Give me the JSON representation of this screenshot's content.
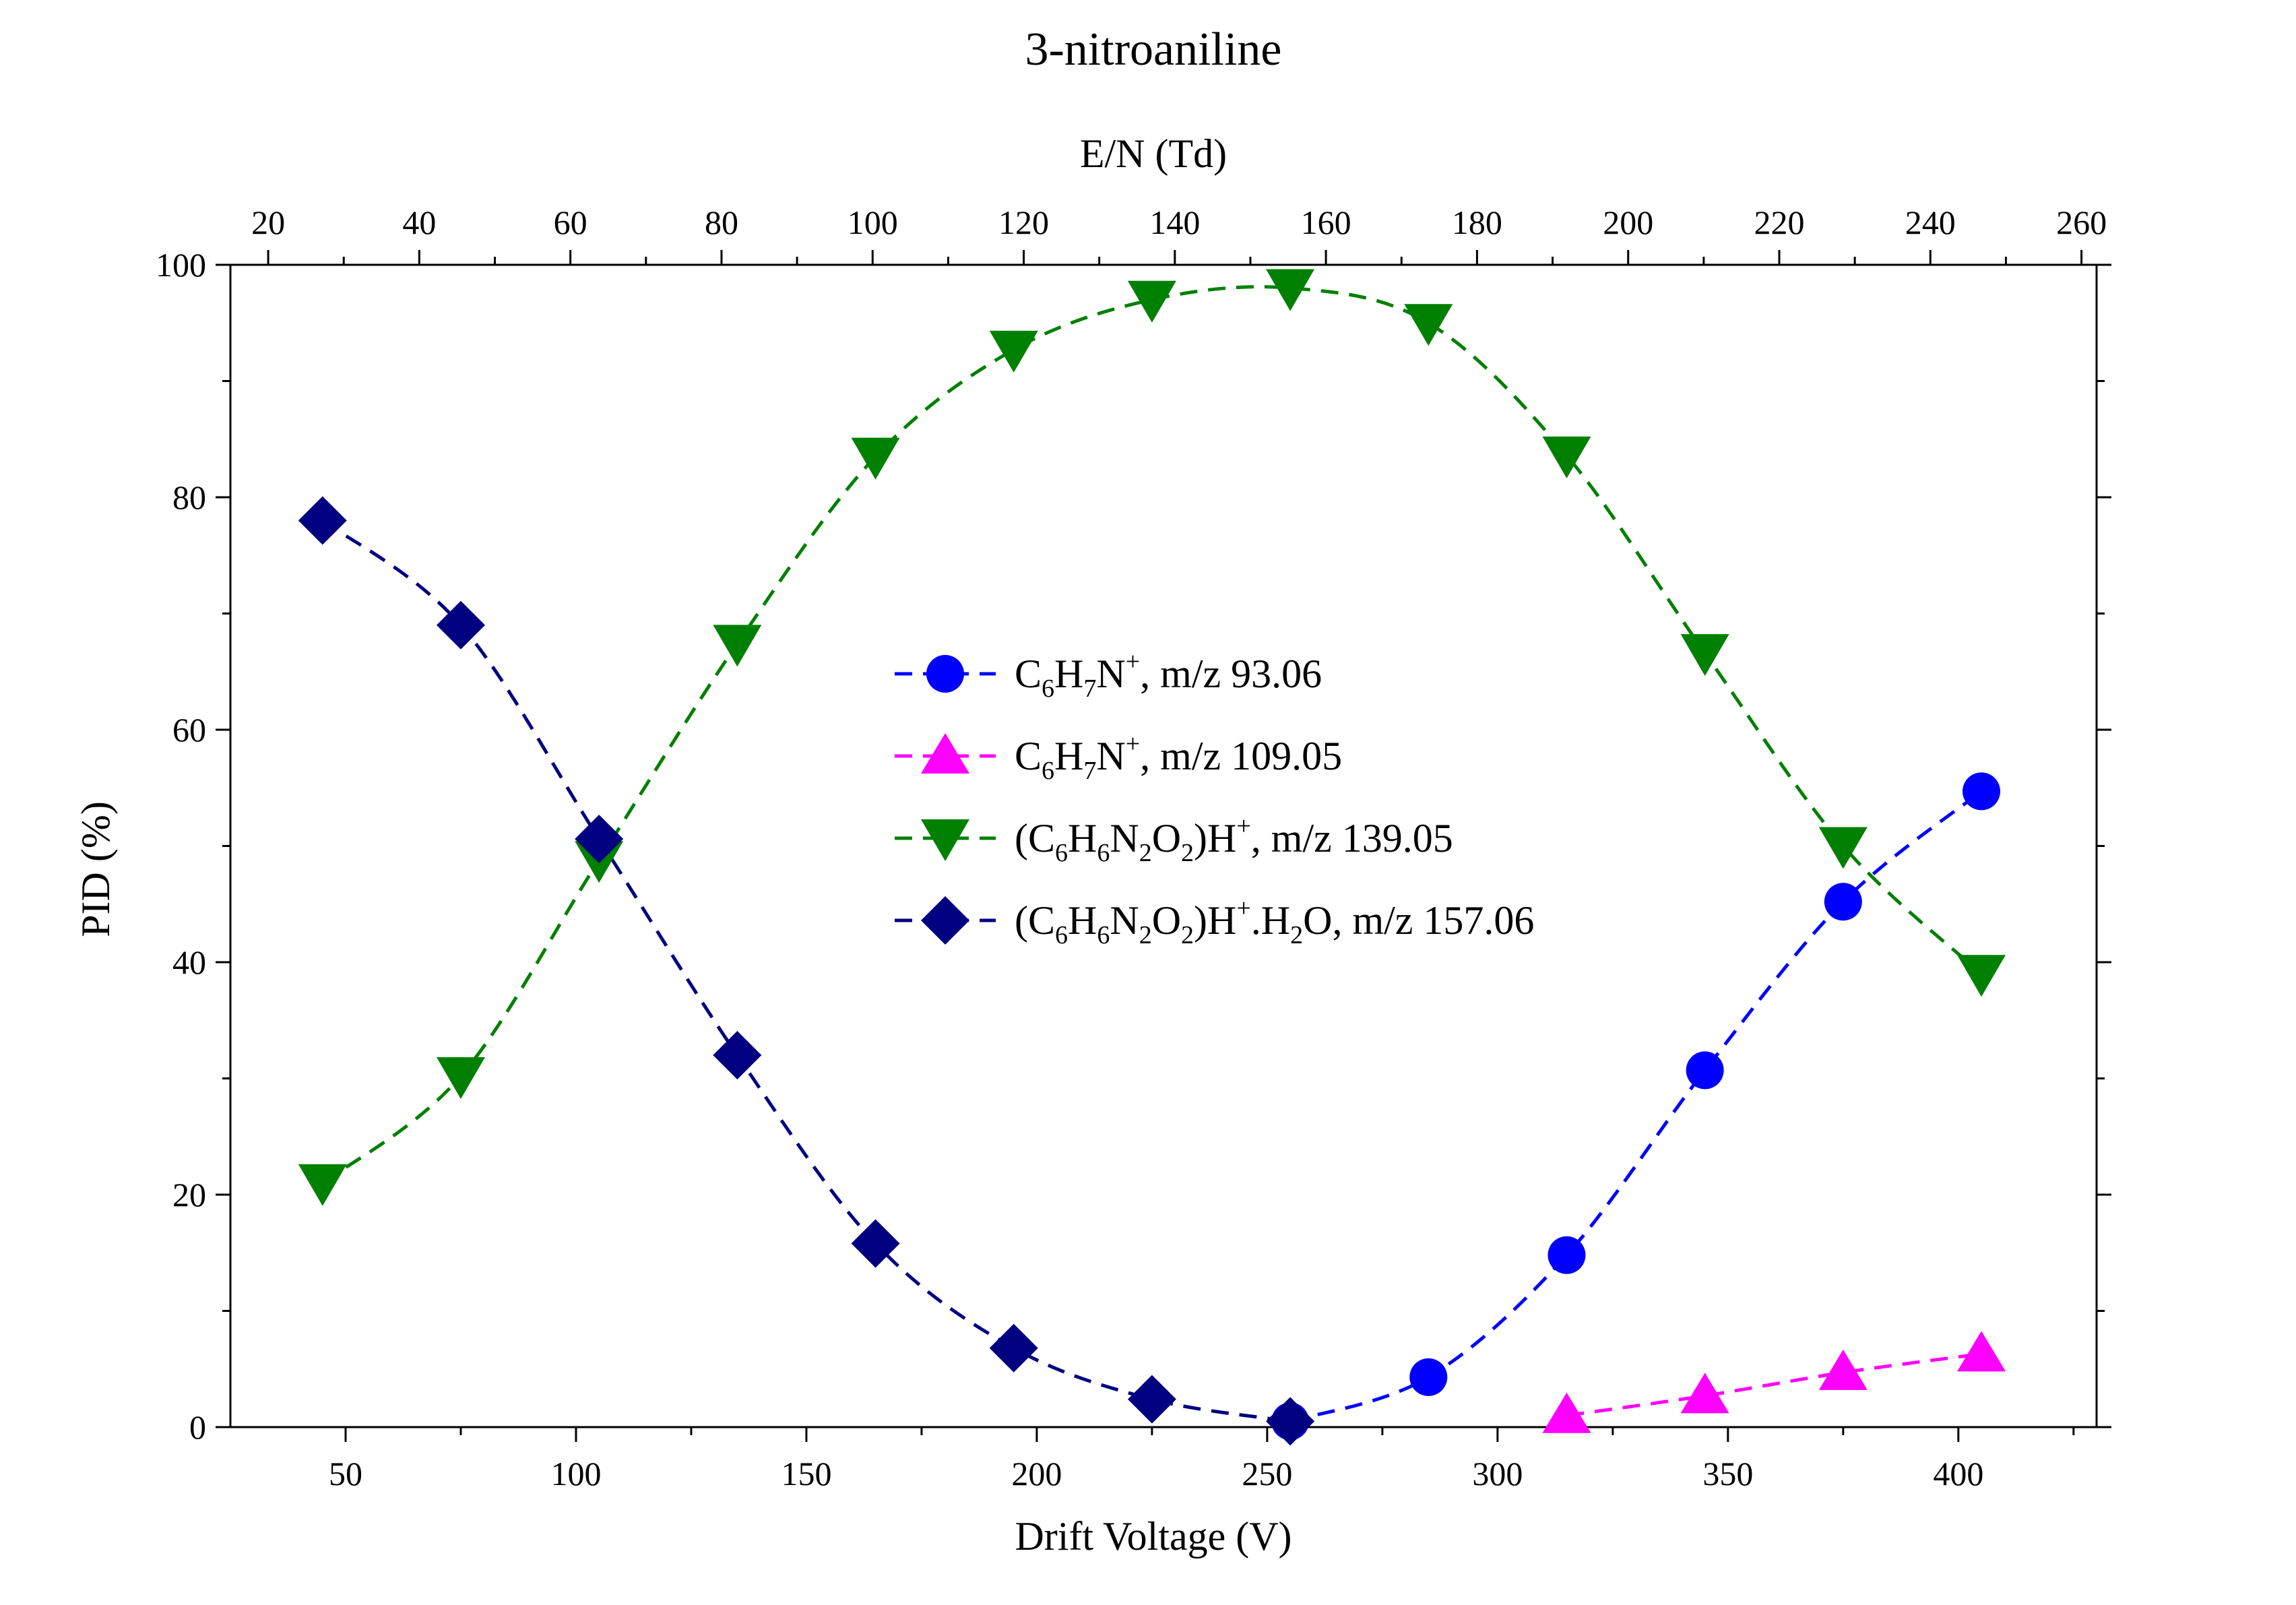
{
  "chart_data": {
    "type": "scatter",
    "title": "3-nitroaniline",
    "xlabel": "Drift Voltage (V)",
    "ylabel": "PID (%)",
    "x2label": "E/N (Td)",
    "xlim": [
      25,
      430
    ],
    "ylim": [
      0,
      100
    ],
    "x2lim": [
      15,
      262
    ],
    "xticks": [
      50,
      100,
      150,
      200,
      250,
      300,
      350,
      400
    ],
    "yticks": [
      0,
      20,
      40,
      60,
      80,
      100
    ],
    "x2ticks": [
      20,
      40,
      60,
      80,
      100,
      120,
      140,
      160,
      180,
      200,
      220,
      240,
      260
    ],
    "grid": false,
    "legend_position": "center",
    "colors": {
      "c1": "#0000ff",
      "c2": "#ff00ff",
      "c3": "#008000",
      "c4": "#000080",
      "axis": "#000000"
    },
    "series": [
      {
        "key": "c1",
        "marker": "circle",
        "legend": {
          "parts": [
            [
              "C",
              ""
            ],
            [
              "6",
              "sub"
            ],
            [
              "H",
              ""
            ],
            [
              "7",
              "sub"
            ],
            [
              "N",
              ""
            ],
            [
              "+",
              "sup"
            ],
            [
              ", m/z 93.06",
              ""
            ]
          ]
        },
        "x": [
          255,
          285,
          315,
          345,
          375,
          405
        ],
        "y": [
          0.5,
          4.3,
          14.8,
          30.7,
          45.2,
          54.7
        ]
      },
      {
        "key": "c2",
        "marker": "triangle-up",
        "legend": {
          "parts": [
            [
              "C",
              ""
            ],
            [
              "6",
              "sub"
            ],
            [
              "H",
              ""
            ],
            [
              "7",
              "sub"
            ],
            [
              "N",
              ""
            ],
            [
              "+",
              "sup"
            ],
            [
              ", m/z 109.05",
              ""
            ]
          ]
        },
        "x": [
          315,
          345,
          375,
          405
        ],
        "y": [
          1.0,
          2.7,
          4.7,
          6.3
        ]
      },
      {
        "key": "c3",
        "marker": "triangle-down",
        "legend": {
          "parts": [
            [
              "(C",
              ""
            ],
            [
              "6",
              "sub"
            ],
            [
              "H",
              ""
            ],
            [
              "6",
              "sub"
            ],
            [
              "N",
              ""
            ],
            [
              "2",
              "sub"
            ],
            [
              "O",
              ""
            ],
            [
              "2",
              "sub"
            ],
            [
              ")H",
              ""
            ],
            [
              "+",
              "sup"
            ],
            [
              ", m/z 139.05",
              ""
            ]
          ]
        },
        "x": [
          45,
          75,
          105,
          135,
          165,
          195,
          225,
          255,
          285,
          315,
          345,
          375,
          405
        ],
        "y": [
          21.0,
          30.2,
          48.8,
          67.4,
          83.5,
          92.7,
          97.0,
          98.0,
          95.0,
          83.6,
          66.6,
          50.0,
          39.0
        ]
      },
      {
        "key": "c4",
        "marker": "diamond",
        "legend": {
          "parts": [
            [
              "(C",
              ""
            ],
            [
              "6",
              "sub"
            ],
            [
              "H",
              ""
            ],
            [
              "6",
              "sub"
            ],
            [
              "N",
              ""
            ],
            [
              "2",
              "sub"
            ],
            [
              "O",
              ""
            ],
            [
              "2",
              "sub"
            ],
            [
              ")H",
              ""
            ],
            [
              "+",
              "sup"
            ],
            [
              ".H",
              ""
            ],
            [
              "2",
              "sub"
            ],
            [
              "O, m/z 157.06",
              ""
            ]
          ]
        },
        "x": [
          45,
          75,
          105,
          135,
          165,
          195,
          225,
          255
        ],
        "y": [
          78.0,
          69.0,
          50.6,
          32.0,
          15.8,
          6.8,
          2.4,
          0.5
        ]
      }
    ]
  }
}
